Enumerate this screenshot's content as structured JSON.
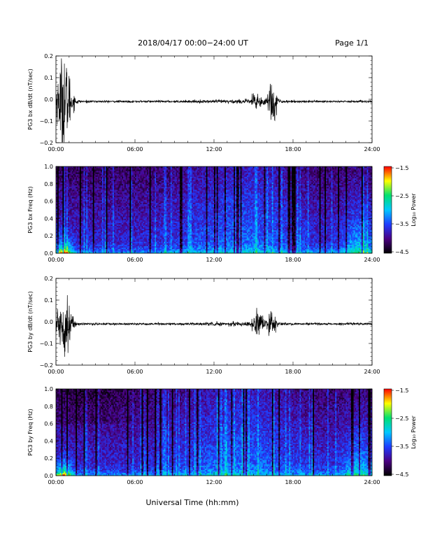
{
  "header": {
    "title": "2018/04/17  00:00−24:00 UT",
    "page": "Page 1/1"
  },
  "footer": {
    "xlabel": "Universal Time (hh:mm)"
  },
  "colors": {
    "line": "#000000",
    "axes": "#000000",
    "background": "#ffffff"
  },
  "chart_data": [
    {
      "type": "line",
      "ylabel": "PG3 bx dB/dt (nT/sec)",
      "x_unit": "hours UT",
      "xlim": [
        0,
        24
      ],
      "ylim": [
        -0.2,
        0.2
      ],
      "xticks": [
        "00:00",
        "06:00",
        "12:00",
        "18:00",
        "24:00"
      ],
      "yticks": [
        "0.2",
        "0.1",
        "0.0",
        "−0.1",
        "−0.2"
      ],
      "grid": false,
      "baseline": -0.01,
      "bursts": [
        {
          "x": 0.6,
          "amplitude": 0.2
        },
        {
          "x": 15.2,
          "amplitude": 0.04
        },
        {
          "x": 16.4,
          "amplitude": 0.09
        }
      ]
    },
    {
      "type": "heatmap",
      "ylabel": "PG3 bx Freq (Hz)",
      "xlim": [
        0,
        24
      ],
      "ylim": [
        0,
        1.0
      ],
      "xticks": [
        "00:00",
        "06:00",
        "12:00",
        "18:00",
        "24:00"
      ],
      "yticks": [
        "1.0",
        "0.8",
        "0.6",
        "0.4",
        "0.2",
        "0.0"
      ],
      "colorbar": {
        "label": "Log₁₀ Power",
        "ticks": [
          "−1.5",
          "−2.5",
          "−3.5",
          "−4.5"
        ],
        "range": [
          -4.5,
          -1.5
        ],
        "colors": [
          "#000000",
          "#4b0082",
          "#1e3cff",
          "#00c8ff",
          "#00e070",
          "#ffff00",
          "#ff0000"
        ]
      }
    },
    {
      "type": "line",
      "ylabel": "PG3 by dB/dt (nT/sec)",
      "x_unit": "hours UT",
      "xlim": [
        0,
        24
      ],
      "ylim": [
        -0.2,
        0.2
      ],
      "xticks": [
        "00:00",
        "06:00",
        "12:00",
        "18:00",
        "24:00"
      ],
      "yticks": [
        "0.2",
        "0.1",
        "0.0",
        "−0.1",
        "−0.2"
      ],
      "grid": false,
      "baseline": -0.01,
      "bursts": [
        {
          "x": 0.6,
          "amplitude": 0.13
        },
        {
          "x": 15.3,
          "amplitude": 0.05
        },
        {
          "x": 16.4,
          "amplitude": 0.05
        }
      ]
    },
    {
      "type": "heatmap",
      "ylabel": "PG3 by Freq (Hz)",
      "xlim": [
        0,
        24
      ],
      "ylim": [
        0,
        1.0
      ],
      "xticks": [
        "00:00",
        "06:00",
        "12:00",
        "18:00",
        "24:00"
      ],
      "yticks": [
        "1.0",
        "0.8",
        "0.6",
        "0.4",
        "0.2",
        "0.0"
      ],
      "colorbar": {
        "label": "Log₁₀ Power",
        "ticks": [
          "−1.5",
          "−2.5",
          "−3.5",
          "−4.5"
        ],
        "range": [
          -4.5,
          -1.5
        ],
        "colors": [
          "#000000",
          "#4b0082",
          "#1e3cff",
          "#00c8ff",
          "#00e070",
          "#ffff00",
          "#ff0000"
        ]
      }
    }
  ]
}
